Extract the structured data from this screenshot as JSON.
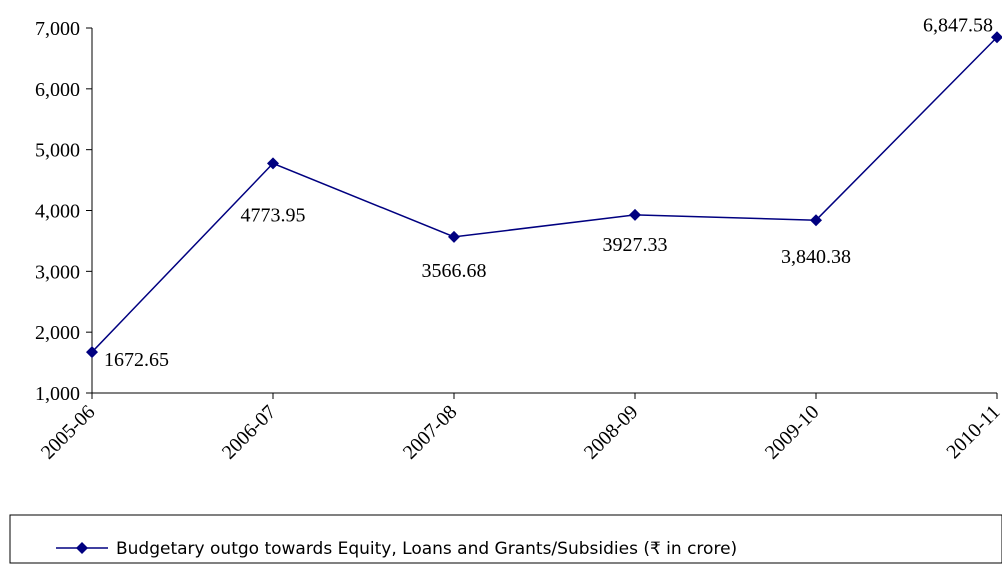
{
  "chart_data": {
    "type": "line",
    "categories": [
      "2005-06",
      "2006-07",
      "2007-08",
      "2008-09",
      "2009-10",
      "2010-11"
    ],
    "series": [
      {
        "name": "Budgetary outgo towards Equity, Loans and Grants/Subsidies  (₹ in crore)",
        "color": "#000080",
        "values": [
          1672.65,
          4773.95,
          3566.68,
          3927.33,
          3840.38,
          6847.58
        ],
        "value_labels": [
          "1672.65",
          "4773.95",
          "3566.68",
          "3927.33",
          "3,840.38",
          "6,847.58"
        ]
      }
    ],
    "ylim": [
      1000,
      7000
    ],
    "yticks": [
      {
        "value": 1000,
        "label": "1,000"
      },
      {
        "value": 2000,
        "label": "2,000"
      },
      {
        "value": 3000,
        "label": "3,000"
      },
      {
        "value": 4000,
        "label": "4,000"
      },
      {
        "value": 5000,
        "label": "5,000"
      },
      {
        "value": 6000,
        "label": "6,000"
      },
      {
        "value": 7000,
        "label": "7,000"
      }
    ],
    "legend": "bottom"
  }
}
